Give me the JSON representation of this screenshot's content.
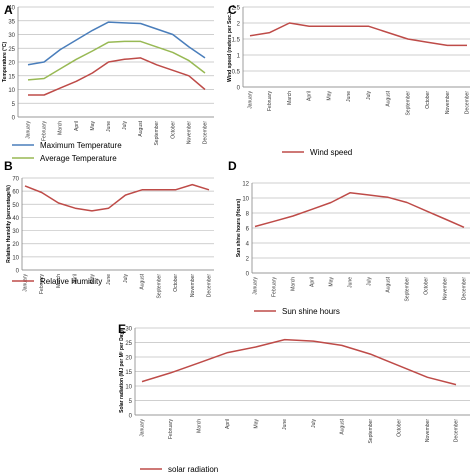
{
  "months": [
    "January",
    "February",
    "March",
    "April",
    "May",
    "June",
    "July",
    "August",
    "September",
    "October",
    "November",
    "December"
  ],
  "colors": {
    "max_temp": "#4a7ebb",
    "avg_temp": "#98b954",
    "series": "#be4b48",
    "grid": "#bfbfbf",
    "axis": "#868686"
  },
  "chart_data": [
    {
      "panel": "A",
      "type": "line",
      "ylabel": "Temperature (°C)",
      "ylim": [
        0,
        40
      ],
      "yticks": [
        0,
        5,
        10,
        15,
        20,
        25,
        30,
        35,
        40
      ],
      "grid": true,
      "legend": "bottom",
      "series": [
        {
          "name": "Maximum Temperature",
          "color_key": "max_temp",
          "values": [
            19,
            20,
            24.5,
            28,
            31.5,
            34.5,
            34.2,
            34,
            32,
            30,
            25.5,
            21.5
          ]
        },
        {
          "name": "Average Temperature",
          "color_key": "avg_temp",
          "values": [
            13.5,
            14,
            17.5,
            21,
            24,
            27.2,
            27.5,
            27.5,
            25.5,
            23.5,
            20.5,
            16
          ]
        },
        {
          "name": "",
          "color_key": "series",
          "values": [
            8,
            8,
            10.5,
            13,
            16,
            20,
            21,
            21.5,
            19,
            17,
            15,
            10
          ]
        }
      ]
    },
    {
      "panel": "C",
      "type": "line",
      "ylabel": "Wind speed (meters per Sec.)",
      "ylim": [
        0,
        2.5
      ],
      "yticks": [
        0,
        0.5,
        1,
        1.5,
        2,
        2.5
      ],
      "grid": true,
      "legend": "bottom",
      "series": [
        {
          "name": "Wind speed",
          "color_key": "series",
          "values": [
            1.6,
            1.7,
            2.0,
            1.9,
            1.9,
            1.9,
            1.9,
            1.7,
            1.5,
            1.4,
            1.3,
            1.3
          ]
        }
      ]
    },
    {
      "panel": "B",
      "type": "line",
      "ylabel": "Relative Humidity (percentage%)",
      "ylim": [
        0,
        70
      ],
      "yticks": [
        0,
        10,
        20,
        30,
        40,
        50,
        60,
        70
      ],
      "grid": true,
      "legend": "bottom",
      "series": [
        {
          "name": "Relative Humidity",
          "color_key": "series",
          "values": [
            64,
            59,
            51,
            47,
            45,
            47,
            57,
            61,
            61,
            61,
            65,
            61
          ]
        }
      ]
    },
    {
      "panel": "D",
      "type": "line",
      "ylabel": "Sun shine hours (Hours)",
      "ylim": [
        0,
        12
      ],
      "yticks": [
        0,
        2,
        4,
        6,
        8,
        10,
        12
      ],
      "grid": true,
      "legend": "bottom",
      "series": [
        {
          "name": "Sun shine hours",
          "color_key": "series",
          "values": [
            6.2,
            6.9,
            7.6,
            8.5,
            9.4,
            10.7,
            10.4,
            10.1,
            9.4,
            8.3,
            7.2,
            6.1
          ]
        }
      ]
    },
    {
      "panel": "E",
      "type": "line",
      "ylabel": "Solar radiation (MJ per M² per Day)",
      "ylim": [
        0,
        30
      ],
      "yticks": [
        0,
        5,
        10,
        15,
        20,
        25,
        30
      ],
      "grid": true,
      "legend": "bottom",
      "series": [
        {
          "name": "solar radiation",
          "color_key": "series",
          "values": [
            11.5,
            14.5,
            18,
            21.5,
            23.5,
            26,
            25.5,
            24,
            21,
            17,
            13,
            10.5
          ]
        }
      ]
    }
  ]
}
